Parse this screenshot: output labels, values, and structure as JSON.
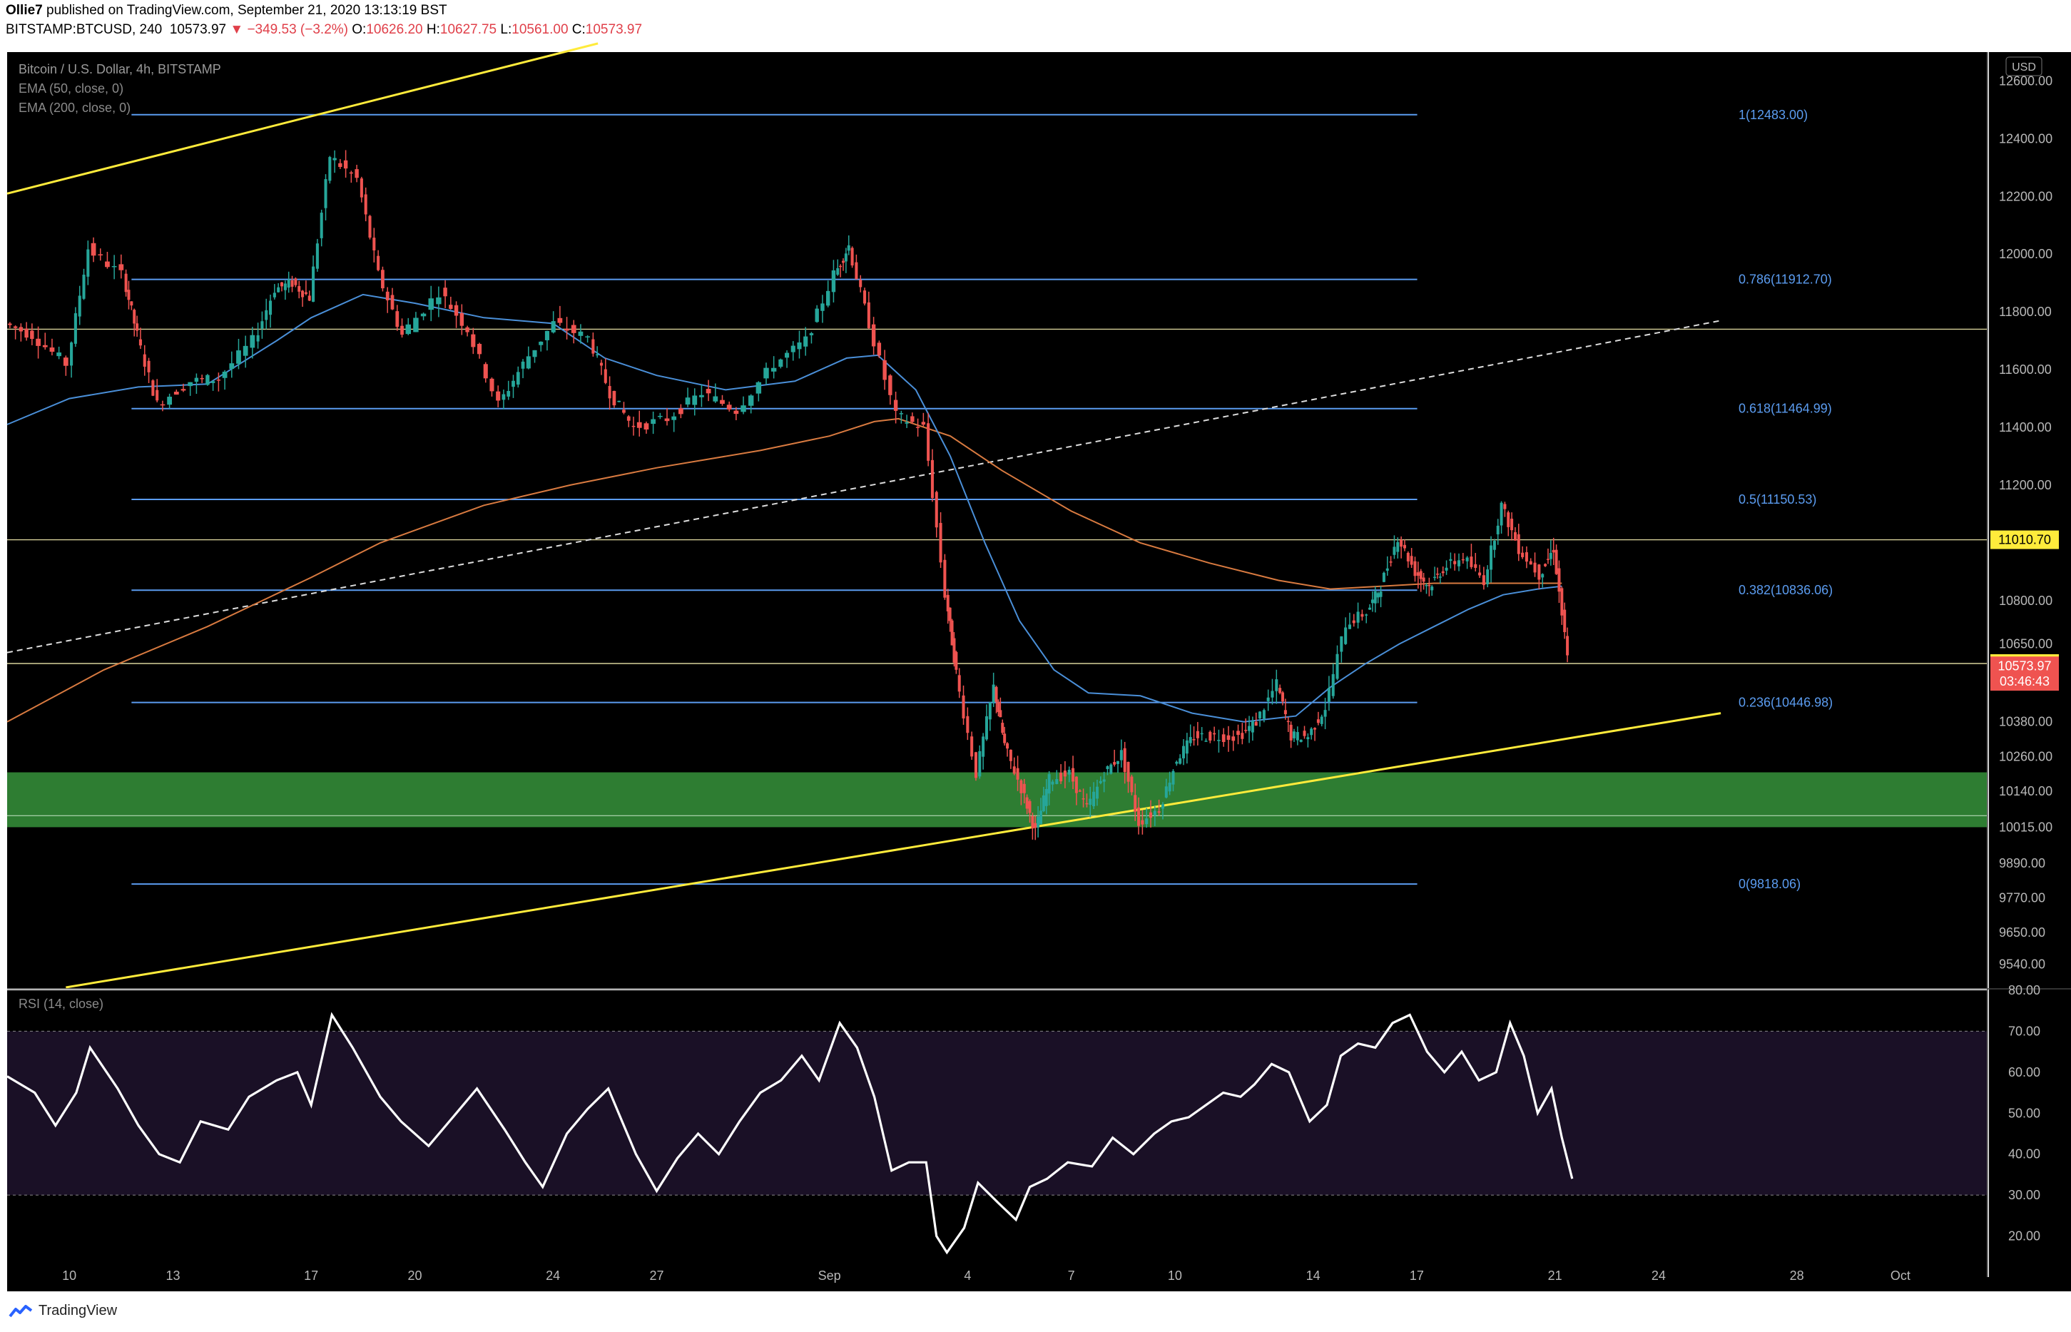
{
  "header": {
    "author": "Ollie7",
    "published": " published on TradingView.com, September 21, 2020 13:13:19 BST",
    "symbol": "BITSTAMP:BTCUSD, 240",
    "last": "10573.97",
    "change": "▼ −349.53 (−3.2%)",
    "o_label": "O:",
    "o": "10626.20",
    "h_label": "H:",
    "h": "10627.75",
    "l_label": "L:",
    "l": "10561.00",
    "c_label": "C:",
    "c": "10573.97"
  },
  "legend": {
    "title": "Bitcoin / U.S. Dollar, 4h, BITSTAMP",
    "ema50": "EMA (50, close, 0)",
    "ema200": "EMA (200, close, 0)",
    "rsi": "RSI (14, close)"
  },
  "currency": "USD",
  "footer": {
    "brand": "TradingView"
  },
  "colors": {
    "background": "#000000",
    "up": "#26a69a",
    "down": "#ef5350",
    "fib": "#5b9cf0",
    "trend": "#ffeb3b",
    "ema50": "#4a8fd8",
    "ema200": "#d87a40",
    "zone": "#2e7d32",
    "rsi_band": "#1a1026"
  },
  "chart_data": {
    "type": "candlestick",
    "price_axis": {
      "ylim": [
        9460,
        12700
      ],
      "ticks": [
        "12600.00",
        "12400.00",
        "12200.00",
        "12000.00",
        "11800.00",
        "11600.00",
        "11400.00",
        "11200.00",
        "10800.00",
        "10650.00",
        "10380.00",
        "10260.00",
        "10140.00",
        "10015.00",
        "9890.00",
        "9770.00",
        "9650.00",
        "9540.00"
      ],
      "tick_values": [
        12600,
        12400,
        12200,
        12000,
        11800,
        11600,
        11400,
        11200,
        10800,
        10650,
        10380,
        10260,
        10140,
        10015,
        9890,
        9770,
        9650,
        9540
      ]
    },
    "x_axis": {
      "ticks": [
        "10",
        "13",
        "17",
        "20",
        "24",
        "27",
        "Sep",
        "4",
        "7",
        "10",
        "14",
        "17",
        "21",
        "24",
        "28",
        "Oct"
      ],
      "tick_days": [
        -22,
        -19,
        -15,
        -12,
        -8,
        -5,
        0,
        4,
        7,
        10,
        14,
        17,
        21,
        24,
        28,
        31
      ]
    },
    "fib_levels": [
      {
        "label": "1(12483.00)",
        "value": 12483.0
      },
      {
        "label": "0.786(11912.70)",
        "value": 11912.7
      },
      {
        "label": "0.618(11464.99)",
        "value": 11464.99
      },
      {
        "label": "0.5(11150.53)",
        "value": 11150.53
      },
      {
        "label": "0.382(10836.06)",
        "value": 10836.06
      },
      {
        "label": "0.236(10446.98)",
        "value": 10446.98
      },
      {
        "label": "0(9818.06)",
        "value": 9818.06
      }
    ],
    "price_labels": [
      {
        "label": "11010.70",
        "value": 11010.7,
        "bg": "#ffeb3b",
        "fg": "#000000"
      },
      {
        "label": "10582.01",
        "value": 10582.01,
        "bg": "#ffeb3b",
        "fg": "#000000"
      },
      {
        "label": "10573.97",
        "value": 10573.97,
        "bg": "#ef5350",
        "fg": "#ffffff"
      },
      {
        "label": "03:46:43",
        "value": 10520,
        "bg": "#ef5350",
        "fg": "#ffffff"
      }
    ],
    "horizontal_lines": [
      11740,
      11010.7,
      10582.01
    ],
    "support_zone": [
      10015,
      10205
    ],
    "support_zone_mid": 10055,
    "trendlines": [
      {
        "x1": -23.8,
        "y1": 12210,
        "x2": -6.7,
        "y2": 12730,
        "style": "solid"
      },
      {
        "x1": -22.1,
        "y1": 9460,
        "x2": 25.8,
        "y2": 10410,
        "style": "solid"
      },
      {
        "x1": -23.8,
        "y1": 10620,
        "x2": 25.8,
        "y2": 11770,
        "style": "dashed"
      }
    ],
    "rsi_axis": {
      "ylim": [
        10,
        80
      ],
      "ticks": [
        "80.00",
        "70.00",
        "60.00",
        "50.00",
        "40.00",
        "30.00",
        "20.00"
      ],
      "tick_values": [
        80,
        70,
        60,
        50,
        40,
        30,
        20
      ],
      "band": [
        30,
        70
      ]
    },
    "price_path": [
      [
        -23.8,
        11760
      ],
      [
        -23.0,
        11720
      ],
      [
        -22.0,
        11620
      ],
      [
        -21.4,
        12020
      ],
      [
        -20.4,
        11930
      ],
      [
        -20.0,
        11720
      ],
      [
        -19.4,
        11480
      ],
      [
        -18.4,
        11560
      ],
      [
        -17.6,
        11570
      ],
      [
        -16.6,
        11700
      ],
      [
        -16.0,
        11880
      ],
      [
        -15.5,
        11900
      ],
      [
        -15.0,
        11850
      ],
      [
        -14.4,
        12340
      ],
      [
        -13.6,
        12260
      ],
      [
        -13.0,
        11930
      ],
      [
        -12.3,
        11720
      ],
      [
        -11.2,
        11870
      ],
      [
        -10.4,
        11740
      ],
      [
        -9.5,
        11480
      ],
      [
        -8.8,
        11620
      ],
      [
        -7.9,
        11760
      ],
      [
        -6.9,
        11710
      ],
      [
        -6.3,
        11520
      ],
      [
        -5.6,
        11400
      ],
      [
        -4.6,
        11430
      ],
      [
        -3.6,
        11520
      ],
      [
        -2.6,
        11460
      ],
      [
        -1.5,
        11620
      ],
      [
        -0.6,
        11700
      ],
      [
        0.2,
        11930
      ],
      [
        0.6,
        12030
      ],
      [
        1.2,
        11760
      ],
      [
        2.0,
        11440
      ],
      [
        2.8,
        11400
      ],
      [
        3.4,
        10820
      ],
      [
        3.7,
        10550
      ],
      [
        4.3,
        10200
      ],
      [
        4.8,
        10500
      ],
      [
        5.1,
        10300
      ],
      [
        5.6,
        10150
      ],
      [
        6.0,
        10000
      ],
      [
        6.4,
        10180
      ],
      [
        7.0,
        10200
      ],
      [
        7.5,
        10080
      ],
      [
        8.0,
        10200
      ],
      [
        8.5,
        10270
      ],
      [
        9.0,
        10030
      ],
      [
        9.6,
        10080
      ],
      [
        10.1,
        10250
      ],
      [
        10.6,
        10330
      ],
      [
        11.2,
        10330
      ],
      [
        11.9,
        10330
      ],
      [
        12.4,
        10380
      ],
      [
        13.0,
        10510
      ],
      [
        13.4,
        10330
      ],
      [
        13.9,
        10330
      ],
      [
        14.4,
        10430
      ],
      [
        15.0,
        10720
      ],
      [
        15.6,
        10760
      ],
      [
        16.0,
        10850
      ],
      [
        16.5,
        11020
      ],
      [
        17.0,
        10900
      ],
      [
        17.4,
        10850
      ],
      [
        17.8,
        10910
      ],
      [
        18.4,
        10950
      ],
      [
        19.0,
        10870
      ],
      [
        19.5,
        11130
      ],
      [
        20.0,
        10980
      ],
      [
        20.6,
        10890
      ],
      [
        21.0,
        10980
      ],
      [
        21.4,
        10600
      ]
    ],
    "ema50_path": [
      [
        -23.8,
        11410
      ],
      [
        -22.0,
        11500
      ],
      [
        -20.0,
        11540
      ],
      [
        -18.0,
        11550
      ],
      [
        -16.0,
        11700
      ],
      [
        -15.0,
        11780
      ],
      [
        -13.5,
        11860
      ],
      [
        -12.0,
        11830
      ],
      [
        -10.0,
        11780
      ],
      [
        -8.0,
        11760
      ],
      [
        -6.5,
        11640
      ],
      [
        -5.0,
        11580
      ],
      [
        -3.0,
        11530
      ],
      [
        -1.0,
        11560
      ],
      [
        0.5,
        11640
      ],
      [
        1.4,
        11650
      ],
      [
        2.5,
        11530
      ],
      [
        3.5,
        11300
      ],
      [
        4.5,
        11000
      ],
      [
        5.5,
        10730
      ],
      [
        6.5,
        10560
      ],
      [
        7.5,
        10480
      ],
      [
        9.0,
        10470
      ],
      [
        10.5,
        10410
      ],
      [
        12.0,
        10380
      ],
      [
        13.5,
        10400
      ],
      [
        14.5,
        10500
      ],
      [
        15.5,
        10580
      ],
      [
        16.5,
        10650
      ],
      [
        17.5,
        10710
      ],
      [
        18.5,
        10770
      ],
      [
        19.5,
        10820
      ],
      [
        20.5,
        10840
      ],
      [
        21.2,
        10850
      ]
    ],
    "ema200_path": [
      [
        -23.8,
        10380
      ],
      [
        -21.0,
        10560
      ],
      [
        -18.0,
        10710
      ],
      [
        -15.0,
        10880
      ],
      [
        -13.0,
        11000
      ],
      [
        -10.0,
        11130
      ],
      [
        -7.5,
        11200
      ],
      [
        -5.0,
        11260
      ],
      [
        -2.0,
        11320
      ],
      [
        0.0,
        11370
      ],
      [
        1.3,
        11420
      ],
      [
        2.0,
        11430
      ],
      [
        3.5,
        11370
      ],
      [
        5.0,
        11250
      ],
      [
        7.0,
        11110
      ],
      [
        9.0,
        11000
      ],
      [
        11.0,
        10930
      ],
      [
        13.0,
        10870
      ],
      [
        14.5,
        10840
      ],
      [
        16.0,
        10850
      ],
      [
        17.5,
        10860
      ],
      [
        19.0,
        10860
      ],
      [
        20.5,
        10860
      ],
      [
        21.2,
        10860
      ]
    ],
    "rsi_path": [
      [
        -23.8,
        59
      ],
      [
        -23.0,
        55
      ],
      [
        -22.4,
        47
      ],
      [
        -21.8,
        55
      ],
      [
        -21.4,
        66
      ],
      [
        -20.6,
        56
      ],
      [
        -20.0,
        47
      ],
      [
        -19.4,
        40
      ],
      [
        -18.8,
        38
      ],
      [
        -18.2,
        48
      ],
      [
        -17.4,
        46
      ],
      [
        -16.8,
        54
      ],
      [
        -16.0,
        58
      ],
      [
        -15.4,
        60
      ],
      [
        -15.0,
        52
      ],
      [
        -14.4,
        74
      ],
      [
        -13.8,
        66
      ],
      [
        -13.0,
        54
      ],
      [
        -12.4,
        48
      ],
      [
        -11.6,
        42
      ],
      [
        -10.8,
        50
      ],
      [
        -10.2,
        56
      ],
      [
        -9.4,
        46
      ],
      [
        -8.8,
        38
      ],
      [
        -8.3,
        32
      ],
      [
        -7.6,
        45
      ],
      [
        -7.0,
        51
      ],
      [
        -6.4,
        56
      ],
      [
        -6.0,
        48
      ],
      [
        -5.6,
        40
      ],
      [
        -5.0,
        31
      ],
      [
        -4.4,
        39
      ],
      [
        -3.8,
        45
      ],
      [
        -3.2,
        40
      ],
      [
        -2.6,
        48
      ],
      [
        -2.0,
        55
      ],
      [
        -1.4,
        58
      ],
      [
        -0.8,
        64
      ],
      [
        -0.3,
        58
      ],
      [
        0.3,
        72
      ],
      [
        0.8,
        66
      ],
      [
        1.3,
        54
      ],
      [
        1.8,
        36
      ],
      [
        2.3,
        38
      ],
      [
        2.8,
        38
      ],
      [
        3.1,
        20
      ],
      [
        3.4,
        16
      ],
      [
        3.9,
        22
      ],
      [
        4.3,
        33
      ],
      [
        4.9,
        28
      ],
      [
        5.4,
        24
      ],
      [
        5.8,
        32
      ],
      [
        6.3,
        34
      ],
      [
        6.9,
        38
      ],
      [
        7.6,
        37
      ],
      [
        8.2,
        44
      ],
      [
        8.8,
        40
      ],
      [
        9.4,
        45
      ],
      [
        9.9,
        48
      ],
      [
        10.4,
        49
      ],
      [
        10.9,
        52
      ],
      [
        11.4,
        55
      ],
      [
        11.9,
        54
      ],
      [
        12.3,
        57
      ],
      [
        12.8,
        62
      ],
      [
        13.3,
        60
      ],
      [
        13.9,
        48
      ],
      [
        14.4,
        52
      ],
      [
        14.8,
        64
      ],
      [
        15.3,
        67
      ],
      [
        15.8,
        66
      ],
      [
        16.3,
        72
      ],
      [
        16.8,
        74
      ],
      [
        17.3,
        65
      ],
      [
        17.8,
        60
      ],
      [
        18.3,
        65
      ],
      [
        18.8,
        58
      ],
      [
        19.3,
        60
      ],
      [
        19.7,
        72
      ],
      [
        20.1,
        64
      ],
      [
        20.5,
        50
      ],
      [
        20.9,
        56
      ],
      [
        21.2,
        44
      ],
      [
        21.5,
        34
      ]
    ]
  }
}
